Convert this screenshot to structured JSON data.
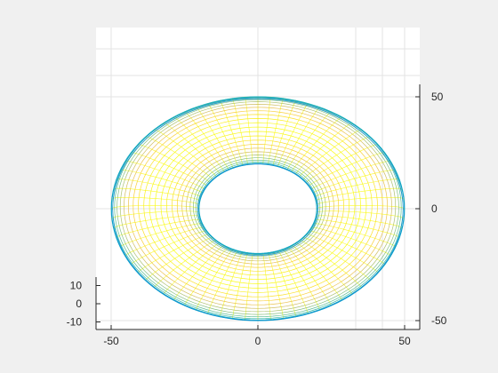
{
  "chart_data": {
    "type": "surface",
    "title": "",
    "xlabel": "",
    "ylabel": "",
    "zlabel": "",
    "surface": "torus",
    "style": "mesh",
    "colormap": "parula",
    "grid": true,
    "view": "near top-down, slightly tilted",
    "major_radius": 35,
    "minor_radius": 15,
    "xlim": [
      -55,
      55
    ],
    "ylim": [
      -55,
      55
    ],
    "zlim": [
      -15,
      15
    ],
    "x_ticks": [
      {
        "value": -50,
        "label": "-50"
      },
      {
        "value": 0,
        "label": "0"
      },
      {
        "value": 50,
        "label": "50"
      }
    ],
    "y_ticks": [
      {
        "value": 50,
        "label": "50"
      },
      {
        "value": 0,
        "label": "0"
      },
      {
        "value": -50,
        "label": "-50"
      }
    ],
    "z_ticks": [
      {
        "value": 10,
        "label": "10"
      },
      {
        "value": 0,
        "label": "0"
      },
      {
        "value": -10,
        "label": "-10"
      }
    ]
  }
}
